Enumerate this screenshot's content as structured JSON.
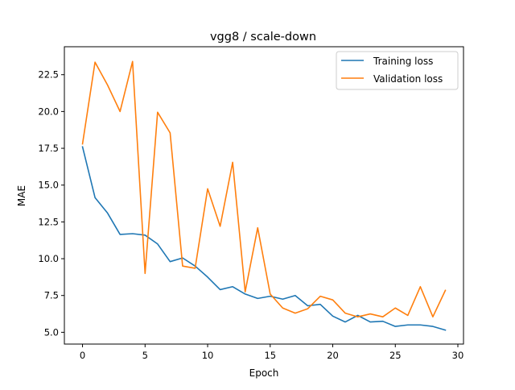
{
  "chart_data": {
    "type": "line",
    "title": "vgg8 / scale-down",
    "xlabel": "Epoch",
    "ylabel": "MAE",
    "xlim": [
      -1.45,
      30.45
    ],
    "ylim": [
      4.2,
      24.4
    ],
    "xticks": [
      0,
      5,
      10,
      15,
      20,
      25,
      30
    ],
    "yticks": [
      5.0,
      7.5,
      10.0,
      12.5,
      15.0,
      17.5,
      20.0,
      22.5
    ],
    "xtick_labels": [
      "0",
      "5",
      "10",
      "15",
      "20",
      "25",
      "30"
    ],
    "ytick_labels": [
      "5.0",
      "7.5",
      "10.0",
      "12.5",
      "15.0",
      "17.5",
      "20.0",
      "22.5"
    ],
    "legend_position": "top-right",
    "grid": false,
    "x": [
      0,
      1,
      2,
      3,
      4,
      5,
      6,
      7,
      8,
      9,
      10,
      11,
      12,
      13,
      14,
      15,
      16,
      17,
      18,
      19,
      20,
      21,
      22,
      23,
      24,
      25,
      26,
      27,
      28,
      29
    ],
    "series": [
      {
        "name": "Training loss",
        "color": "#1f77b4",
        "values": [
          17.6,
          14.15,
          13.1,
          11.65,
          11.7,
          11.6,
          11.0,
          9.8,
          10.05,
          9.5,
          8.75,
          7.9,
          8.1,
          7.6,
          7.3,
          7.45,
          7.25,
          7.5,
          6.8,
          6.9,
          6.1,
          5.7,
          6.15,
          5.7,
          5.75,
          5.4,
          5.5,
          5.5,
          5.4,
          5.15
        ]
      },
      {
        "name": "Validation loss",
        "color": "#ff7f0e",
        "values": [
          17.8,
          23.35,
          21.8,
          20.0,
          23.4,
          9.0,
          19.95,
          18.55,
          9.5,
          9.35,
          14.75,
          12.2,
          16.55,
          7.75,
          12.1,
          7.6,
          6.65,
          6.3,
          6.6,
          7.45,
          7.2,
          6.3,
          6.05,
          6.25,
          6.05,
          6.65,
          6.15,
          8.1,
          6.05,
          7.85
        ]
      }
    ]
  }
}
